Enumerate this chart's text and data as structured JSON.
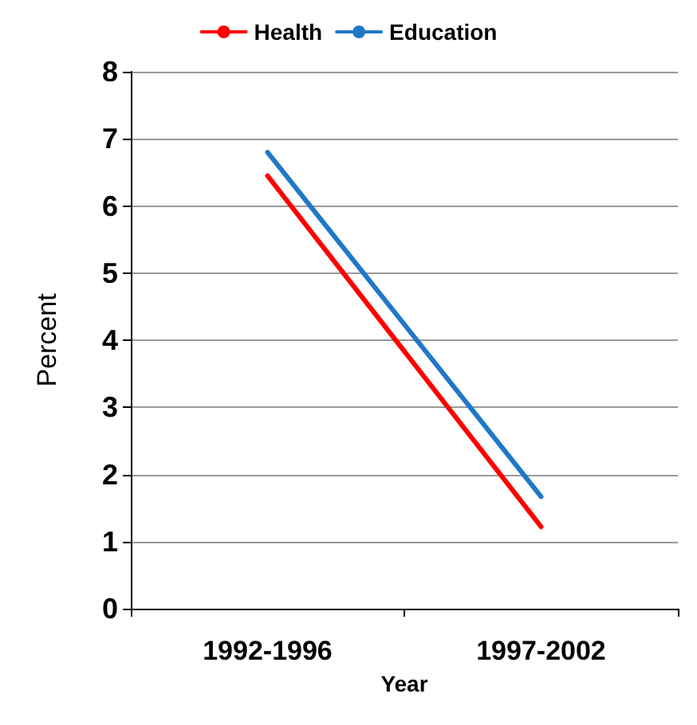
{
  "chart_data": {
    "type": "line",
    "xlabel": "Year",
    "ylabel": "Percent",
    "categories": [
      "1992-1996",
      "1997-2002"
    ],
    "series": [
      {
        "name": "Health",
        "color": "#ff0000",
        "values": [
          6.45,
          1.22
        ]
      },
      {
        "name": "Education",
        "color": "#1f78c8",
        "values": [
          6.8,
          1.67
        ]
      }
    ],
    "ylim": [
      0,
      8
    ],
    "yticks": [
      0,
      1,
      2,
      3,
      4,
      5,
      6,
      7,
      8
    ],
    "grid": "y",
    "legend": "top",
    "marker": "none",
    "line_style": "solid"
  }
}
